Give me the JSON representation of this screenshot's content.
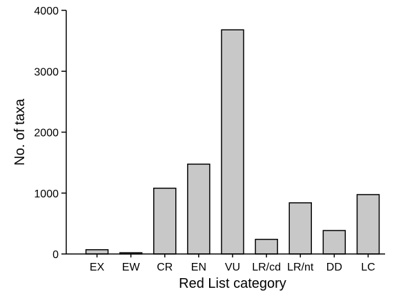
{
  "chart_data": {
    "type": "bar",
    "xlabel": "Red List category",
    "ylabel": "No. of taxa",
    "categories": [
      "EX",
      "EW",
      "CR",
      "EN",
      "VU",
      "LR/cd",
      "LR/nt",
      "DD",
      "LC"
    ],
    "values": [
      70,
      20,
      1080,
      1475,
      3680,
      240,
      840,
      385,
      975
    ],
    "ylim": [
      0,
      4000
    ],
    "yticks": [
      0,
      1000,
      2000,
      3000,
      4000
    ],
    "grid": false,
    "legend": "none",
    "colors": {
      "bar_fill": "#c8c8c8",
      "bar_stroke": "#000000",
      "axis": "#000000"
    }
  }
}
